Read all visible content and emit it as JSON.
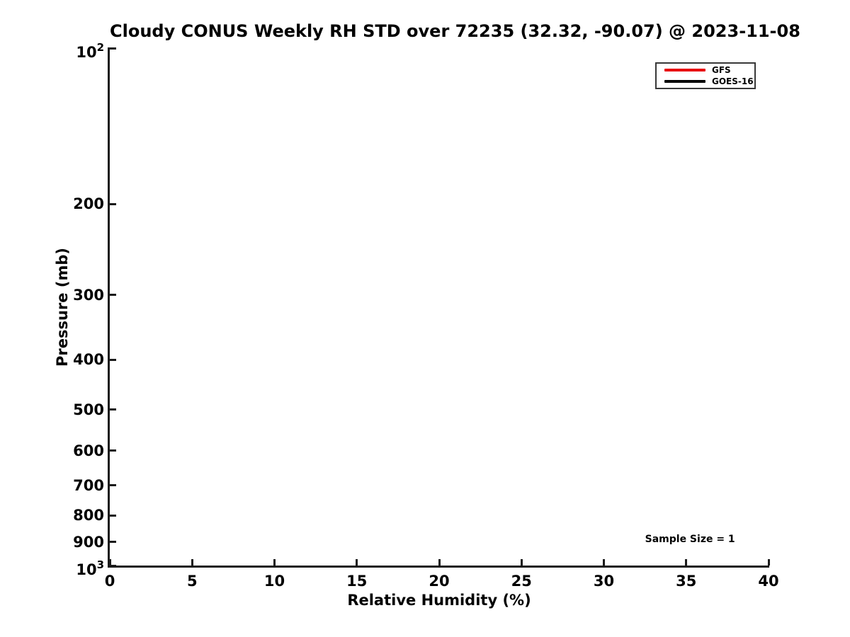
{
  "chart_data": {
    "type": "line",
    "title": "Cloudy CONUS Weekly RH STD over 72235 (32.32, -90.07) @ 2023-11-08",
    "xlabel": "Relative Humidity (%)",
    "ylabel": "Pressure (mb)",
    "grid": false,
    "axis_color": "#1a1a1a",
    "x_axis": {
      "scale": "linear",
      "min": 0,
      "max": 40,
      "ticks": [
        {
          "value": 0,
          "label": "0"
        },
        {
          "value": 5,
          "label": "5"
        },
        {
          "value": 10,
          "label": "10"
        },
        {
          "value": 15,
          "label": "15"
        },
        {
          "value": 20,
          "label": "20"
        },
        {
          "value": 25,
          "label": "25"
        },
        {
          "value": 30,
          "label": "30"
        },
        {
          "value": 35,
          "label": "35"
        },
        {
          "value": 40,
          "label": "40"
        }
      ]
    },
    "y_axis": {
      "scale": "log",
      "inverted": true,
      "min": 100,
      "max": 1000,
      "ticks": [
        {
          "value": 100,
          "base": "10",
          "exp": "2"
        },
        {
          "value": 200,
          "label": "200"
        },
        {
          "value": 300,
          "label": "300"
        },
        {
          "value": 400,
          "label": "400"
        },
        {
          "value": 500,
          "label": "500"
        },
        {
          "value": 600,
          "label": "600"
        },
        {
          "value": 700,
          "label": "700"
        },
        {
          "value": 800,
          "label": "800"
        },
        {
          "value": 900,
          "label": "900"
        },
        {
          "value": 1000,
          "base": "10",
          "exp": "3"
        }
      ]
    },
    "legend": {
      "position": "upper-right",
      "entries": [
        {
          "name": "GFS",
          "color": "#e8000b"
        },
        {
          "name": "GOES-16",
          "color": "#000000"
        }
      ]
    },
    "annotation": {
      "text": "Sample Size = 1",
      "x": 32.5,
      "y": 895
    },
    "series": [
      {
        "name": "GFS",
        "color": "#e8000b",
        "x": [],
        "y": []
      },
      {
        "name": "GOES-16",
        "color": "#000000",
        "x": [],
        "y": []
      }
    ]
  }
}
